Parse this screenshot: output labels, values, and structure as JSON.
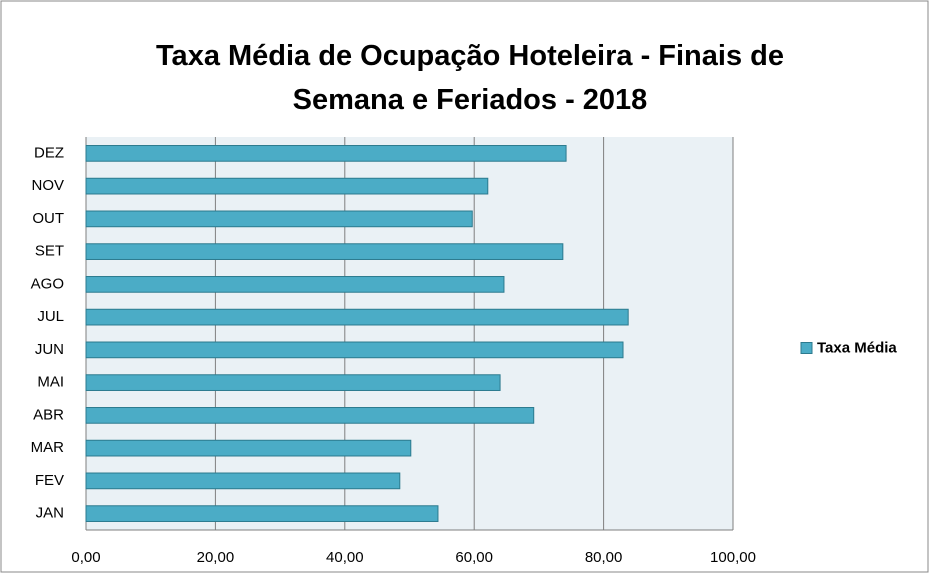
{
  "chart_data": {
    "type": "bar",
    "orientation": "horizontal",
    "title": "Taxa Média de Ocupação Hoteleira - Finais de Semana e Feriados - 2018",
    "categories": [
      "JAN",
      "FEV",
      "MAR",
      "ABR",
      "MAI",
      "JUN",
      "JUL",
      "AGO",
      "SET",
      "OUT",
      "NOV",
      "DEZ"
    ],
    "series": [
      {
        "name": "Taxa Média",
        "color": "#4bacc6",
        "values": [
          54.4,
          48.5,
          50.2,
          69.2,
          64.0,
          83.0,
          83.8,
          64.6,
          73.7,
          59.7,
          62.1,
          74.2
        ]
      }
    ],
    "xlim": [
      0,
      100
    ],
    "xticks": [
      {
        "value": 0,
        "label": "0,00"
      },
      {
        "value": 20,
        "label": "20,00"
      },
      {
        "value": 40,
        "label": "40,00"
      },
      {
        "value": 60,
        "label": "60,00"
      },
      {
        "value": 80,
        "label": "80,00"
      },
      {
        "value": 100,
        "label": "100,00"
      }
    ],
    "grid": true,
    "legend": "right"
  }
}
